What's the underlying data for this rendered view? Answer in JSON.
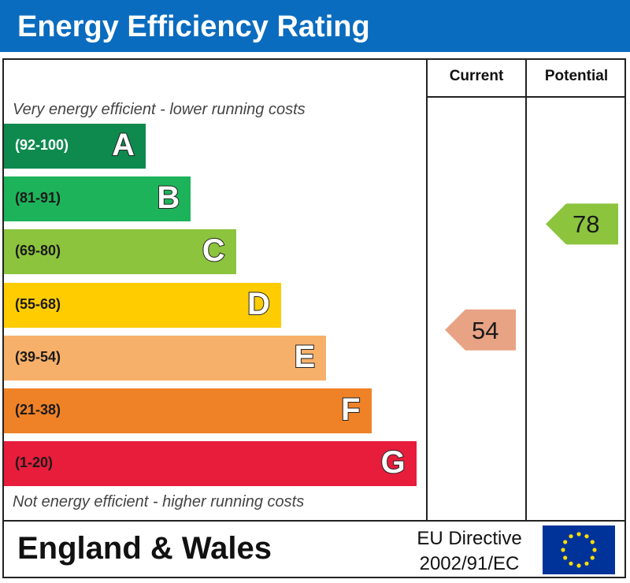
{
  "header": {
    "title": "Energy Efficiency Rating"
  },
  "columns": {
    "current": "Current",
    "potential": "Potential"
  },
  "captions": {
    "top": "Very energy efficient - lower running costs",
    "bottom": "Not energy efficient - higher running costs"
  },
  "chart_data": {
    "type": "bar",
    "title": "Energy Efficiency Rating",
    "categories": [
      "A",
      "B",
      "C",
      "D",
      "E",
      "F",
      "G"
    ],
    "bands": [
      {
        "letter": "A",
        "range": "(92-100)",
        "color": "#0e8a4e"
      },
      {
        "letter": "B",
        "range": "(81-91)",
        "color": "#1db35a"
      },
      {
        "letter": "C",
        "range": "(69-80)",
        "color": "#8cc43e"
      },
      {
        "letter": "D",
        "range": "(55-68)",
        "color": "#ffcc00"
      },
      {
        "letter": "E",
        "range": "(39-54)",
        "color": "#f7b069"
      },
      {
        "letter": "F",
        "range": "(21-38)",
        "color": "#ef8226"
      },
      {
        "letter": "G",
        "range": "(1-20)",
        "color": "#e71d3b"
      }
    ],
    "current": {
      "value": 54,
      "band": "E",
      "color": "#e8a384"
    },
    "potential": {
      "value": 78,
      "band": "C",
      "color": "#8cc43e"
    }
  },
  "footer": {
    "country": "England & Wales",
    "directive_line1": "EU Directive",
    "directive_line2": "2002/91/EC",
    "flag_color": "#003399",
    "star_color": "#ffdd00",
    "flag_icon": "eu-flag-icon"
  }
}
